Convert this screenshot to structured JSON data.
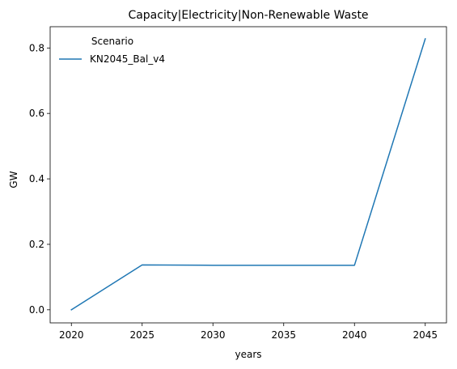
{
  "chart_data": {
    "type": "line",
    "title": "Capacity|Electricity|Non-Renewable Waste",
    "xlabel": "years",
    "ylabel": "GW",
    "xlim": [
      2018.5,
      2046.5
    ],
    "ylim": [
      -0.04,
      0.865
    ],
    "xticks": [
      2020,
      2025,
      2030,
      2035,
      2040,
      2045
    ],
    "yticks": [
      0.0,
      0.2,
      0.4,
      0.6,
      0.8
    ],
    "ytick_labels": [
      "0.0",
      "0.2",
      "0.4",
      "0.6",
      "0.8"
    ],
    "grid": false,
    "legend": {
      "title": "Scenario",
      "placement": "top-left"
    },
    "series": [
      {
        "name": "KN2045_Bal_v4",
        "color": "#1f77b4",
        "x": [
          2020,
          2025,
          2030,
          2035,
          2040,
          2045
        ],
        "y": [
          0.0,
          0.137,
          0.136,
          0.136,
          0.136,
          0.828
        ]
      }
    ]
  }
}
